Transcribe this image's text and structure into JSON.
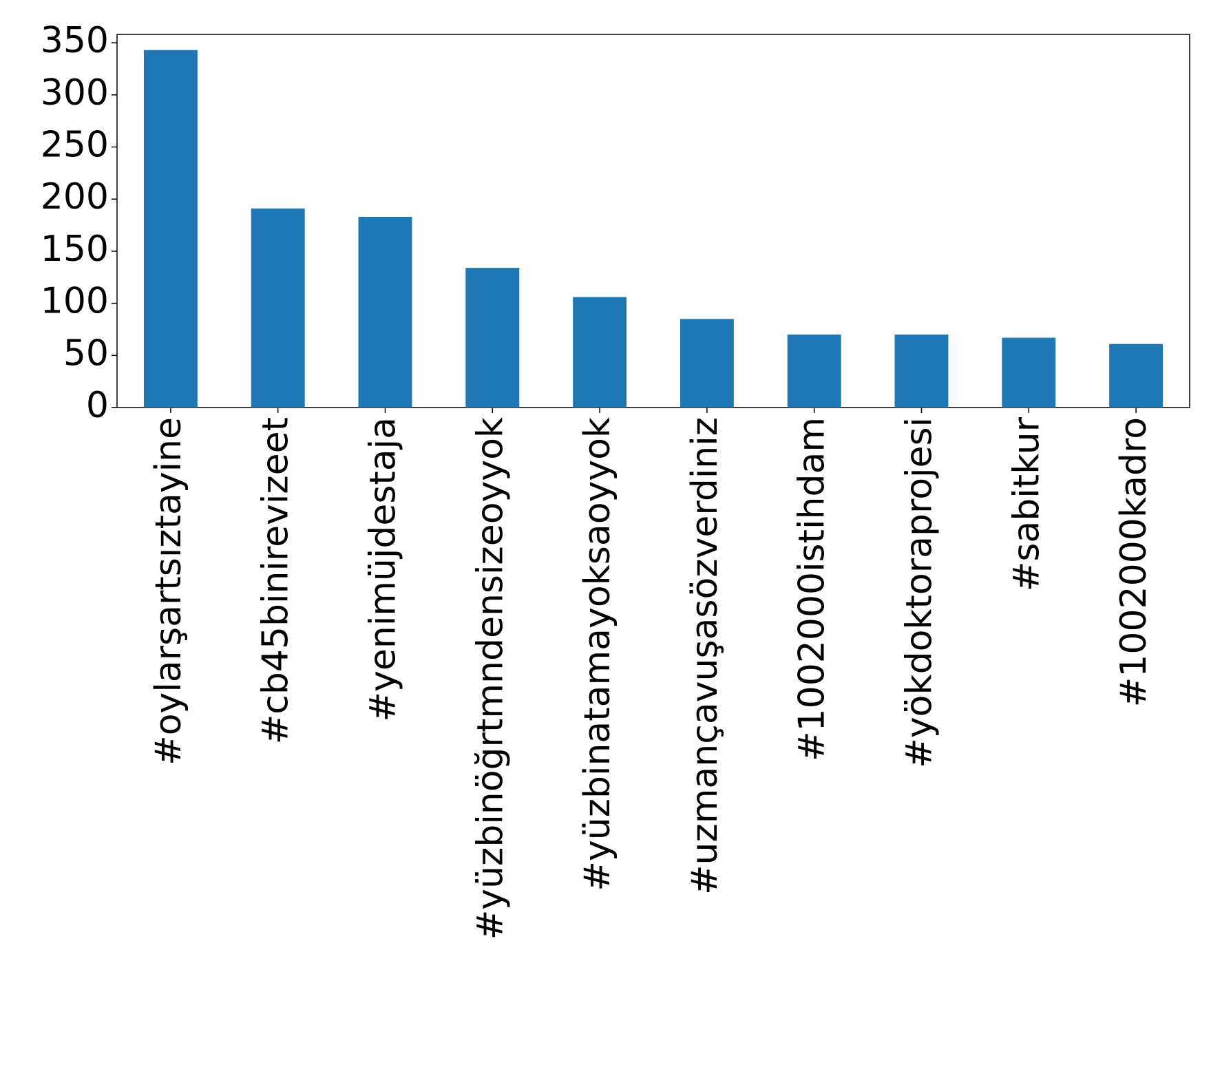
{
  "chart_data": {
    "type": "bar",
    "categories": [
      "#oylarşartsıztayine",
      "#cb45binirevizeet",
      "#yenimüjdestaja",
      "#yüzbinöğrtmndensizeoyyok",
      "#yüzbinatamayoksaoyyok",
      "#uzmançavuşasözverdiniz",
      "#1002000istihdam",
      "#yökdoktoraprojesi",
      "#sabitkur",
      "#1002000kadro"
    ],
    "values": [
      343,
      191,
      183,
      134,
      106,
      85,
      70,
      70,
      67,
      61
    ],
    "color": "#1f77b4",
    "ylim": [
      0,
      358
    ],
    "yticks": [
      0,
      50,
      100,
      150,
      200,
      250,
      300,
      350
    ],
    "grid": false
  }
}
